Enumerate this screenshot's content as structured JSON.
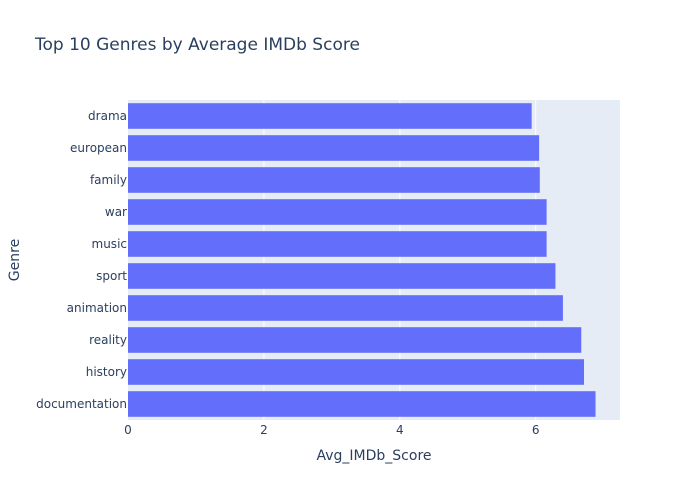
{
  "chart_data": {
    "type": "bar",
    "orientation": "horizontal",
    "title": "Top 10 Genres by Average IMDb Score",
    "xlabel": "Avg_IMDb_Score",
    "ylabel": "Genre",
    "categories": [
      "drama",
      "european",
      "family",
      "war",
      "music",
      "sport",
      "animation",
      "reality",
      "history",
      "documentation"
    ],
    "values": [
      5.94,
      6.05,
      6.06,
      6.16,
      6.16,
      6.29,
      6.4,
      6.67,
      6.71,
      6.88
    ],
    "xlim": [
      0,
      7.24
    ],
    "xticks": [
      0,
      2,
      4,
      6
    ],
    "grid": true,
    "colors": {
      "bar": "#636efa",
      "plot_background": "#e5ecf6",
      "grid": "#ffffff",
      "text": "#2a3f5f"
    }
  }
}
